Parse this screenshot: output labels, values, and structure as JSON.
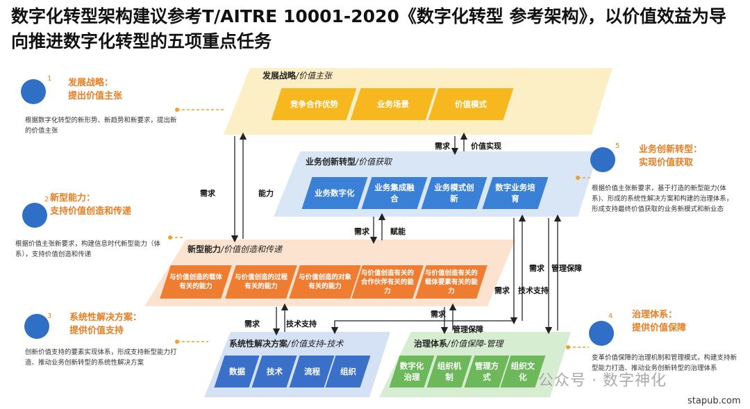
{
  "title": "数字化转型架构建议参考T/AITRE 10001-2020《数字化转型 参考架构》，以价值效益为导向推进数字化转型的五项重点任务",
  "layers": [
    {
      "name": "发展战略",
      "aspect": "/价值主张",
      "items": [
        "竞争合作优势",
        "业务场景",
        "价值模式"
      ]
    },
    {
      "name": "业务创新转型",
      "aspect": "/价值获取",
      "items": [
        "业务数字化",
        "业务集成融合",
        "业务模式创新",
        "数字业务培育"
      ]
    },
    {
      "name": "新型能力",
      "aspect": "/价值创造和传递",
      "items": [
        "与价值创造的载体有关的能力",
        "与价值创造的过程有关的能力",
        "与价值创造的对象有关的能力",
        "与价值创造有关的合作伙伴有关的能力",
        "与价值创造有关的载体要素有关的能力"
      ]
    },
    {
      "name": "系统性解决方案",
      "aspect": "/价值支持-技术",
      "items": [
        "数据",
        "技术",
        "流程",
        "组织"
      ]
    },
    {
      "name": "治理体系",
      "aspect": "/价值保障-管理",
      "items": [
        "数字化治理",
        "组织机制",
        "管理方式",
        "组织文化"
      ]
    }
  ],
  "notes": [
    {
      "number": "1",
      "title": "发展战略：",
      "subtitle": "提出价值主张",
      "text": "根据数字化转型的新形势、新趋势和新要求，提出新的价值主张"
    },
    {
      "number": "2",
      "title": "新型能力：",
      "subtitle": "支持价值创造和传递",
      "text": "根据价值主张新要求，构建信息时代新型能力（体系），支持价值创造和传递"
    },
    {
      "number": "3",
      "title": "系统性解决方案：",
      "subtitle": "提供价值支持",
      "text": "创新价值支持的要素实现体系，形成支持新型能力打造、推动业务创新转型的系统性解决方案"
    },
    {
      "number": "4",
      "title": "治理体系：",
      "subtitle": "提供价值保障",
      "text": "变革价值保障的治理机制和管理模式，构建支持新型能力打造、推动业务创新转型的治理体系"
    },
    {
      "number": "5",
      "title": "业务创新转型：",
      "subtitle": "实现价值获取",
      "text": "根据价值主张新要求，基于打造的新型能力(体系)、形成的系统性解决方案和构建的治理体系，形成支持最终价值获取的业务新模式和新业态"
    }
  ],
  "arrow_labels": [
    "需求",
    "价值实现",
    "需求",
    "能力",
    "需求",
    "赋能",
    "需求",
    "技术支持",
    "需求",
    "技术支持",
    "需求",
    "管理保障",
    "需求",
    "管理保障"
  ],
  "watermark": "公众号 · 数字神化",
  "source": "stapub.com"
}
